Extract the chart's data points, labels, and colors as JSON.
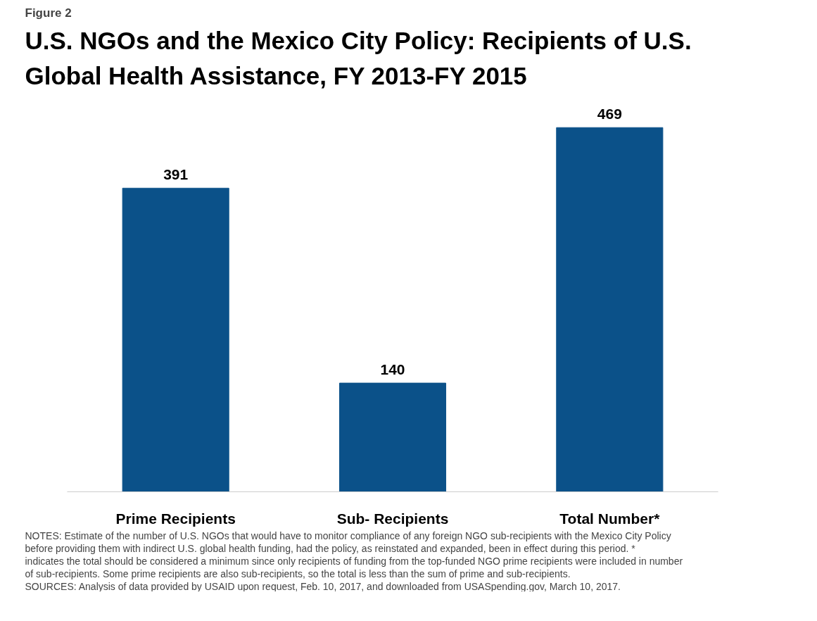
{
  "chart_data": {
    "type": "bar",
    "subtitle": "Figure 2",
    "title": "U.S. NGOs and the Mexico City Policy: Recipients of U.S. Global Health Assistance, FY 2013-FY 2015",
    "categories": [
      "Prime Recipients",
      "Sub- Recipients",
      "Total Number*"
    ],
    "values": [
      391,
      140,
      469
    ],
    "color": "#0b5189",
    "data_labels": true,
    "grid": false,
    "annotations": [
      "NOTES: Estimate of the number of U.S. NGOs that would have to monitor compliance of any foreign NGO sub-recipients with the Mexico City Policy before providing them with indirect U.S. global health funding, had the policy, as reinstated and expanded, been in effect during this period. * indicates the total should be considered a minimum since only recipients of funding from the top-funded NGO prime recipients were included in number of sub-recipients. Some prime recipients are also sub-recipients, so the total is less than the sum of prime and sub-recipients.",
      "SOURCES: Analysis of data provided by USAID upon request, Feb. 10, 2017, and downloaded from USASpending.gov, March 10, 2017."
    ]
  }
}
